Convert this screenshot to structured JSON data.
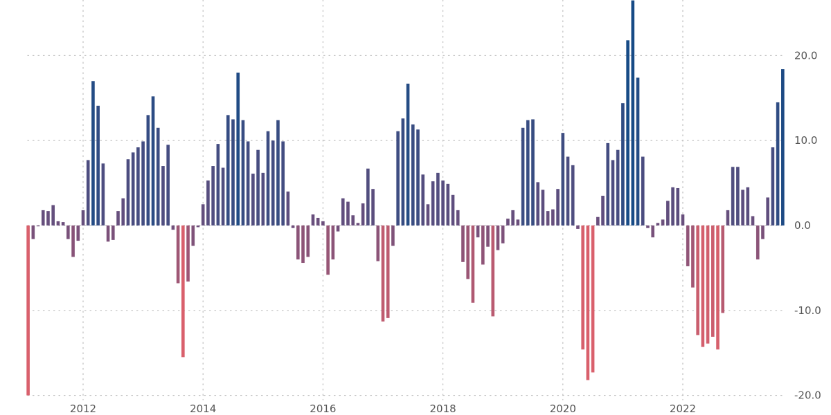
{
  "chart_data": {
    "type": "bar",
    "title": "",
    "xlabel": "",
    "ylabel": "",
    "ylim": [
      -20,
      25
    ],
    "xlim": [
      2011.0,
      2023.6
    ],
    "grid": true,
    "legend": "none",
    "colors": {
      "negative": "#d9606c",
      "neutral": "#6e4f7c",
      "positive": "#174b86"
    },
    "x_ticks": [
      {
        "value": 2012,
        "label": "2012"
      },
      {
        "value": 2014,
        "label": "2014"
      },
      {
        "value": 2016,
        "label": "2016"
      },
      {
        "value": 2018,
        "label": "2018"
      },
      {
        "value": 2020,
        "label": "2020"
      },
      {
        "value": 2022,
        "label": "2022"
      }
    ],
    "y_ticks": [
      {
        "value": 20,
        "label": "20.0"
      },
      {
        "value": 10,
        "label": "10.0"
      },
      {
        "value": 0,
        "label": "0.0"
      },
      {
        "value": -10,
        "label": "-10.0"
      },
      {
        "value": -20,
        "label": "-20.0"
      }
    ],
    "start_period": "2011-02",
    "frequency": "monthly",
    "values": [
      -20.0,
      -1.6,
      -0.1,
      1.8,
      1.7,
      2.4,
      0.5,
      0.4,
      -1.6,
      -3.7,
      -1.8,
      1.8,
      7.7,
      17.0,
      14.1,
      7.3,
      -1.9,
      -1.7,
      1.7,
      3.2,
      7.8,
      8.6,
      9.2,
      9.9,
      13.0,
      15.2,
      11.5,
      7.0,
      9.5,
      -0.5,
      -6.8,
      -15.5,
      -6.6,
      -2.4,
      -0.2,
      2.5,
      5.3,
      7.0,
      9.6,
      6.8,
      13.0,
      12.5,
      18.0,
      12.4,
      9.9,
      6.1,
      8.9,
      6.2,
      11.1,
      10.0,
      12.4,
      9.9,
      4.0,
      -0.3,
      -4.0,
      -4.4,
      -3.7,
      1.3,
      0.9,
      0.5,
      -5.8,
      -4.0,
      -0.7,
      3.2,
      2.8,
      1.2,
      0.3,
      2.6,
      6.7,
      4.3,
      -4.2,
      -11.3,
      -10.9,
      -2.4,
      11.1,
      12.6,
      16.7,
      11.9,
      11.3,
      6.0,
      2.5,
      5.2,
      6.2,
      5.3,
      4.9,
      3.6,
      1.8,
      -4.3,
      -6.3,
      -9.1,
      -1.4,
      -4.6,
      -2.5,
      -10.7,
      -2.9,
      -2.1,
      0.8,
      1.8,
      0.7,
      11.5,
      12.4,
      12.5,
      5.1,
      4.2,
      1.7,
      1.9,
      4.3,
      10.9,
      8.1,
      7.1,
      -0.4,
      -14.6,
      -18.2,
      -17.3,
      1.0,
      3.5,
      9.7,
      7.7,
      8.9,
      14.4,
      21.8,
      26.5,
      17.4,
      8.1,
      -0.3,
      -1.4,
      0.3,
      0.7,
      2.9,
      4.5,
      4.4,
      1.3,
      -4.8,
      -7.3,
      -12.9,
      -14.3,
      -13.9,
      -13.1,
      -14.6,
      -10.3,
      1.8,
      6.9,
      6.9,
      4.2,
      4.5,
      1.1,
      -4.0,
      -1.6,
      3.3,
      9.2,
      14.5,
      18.4
    ]
  }
}
